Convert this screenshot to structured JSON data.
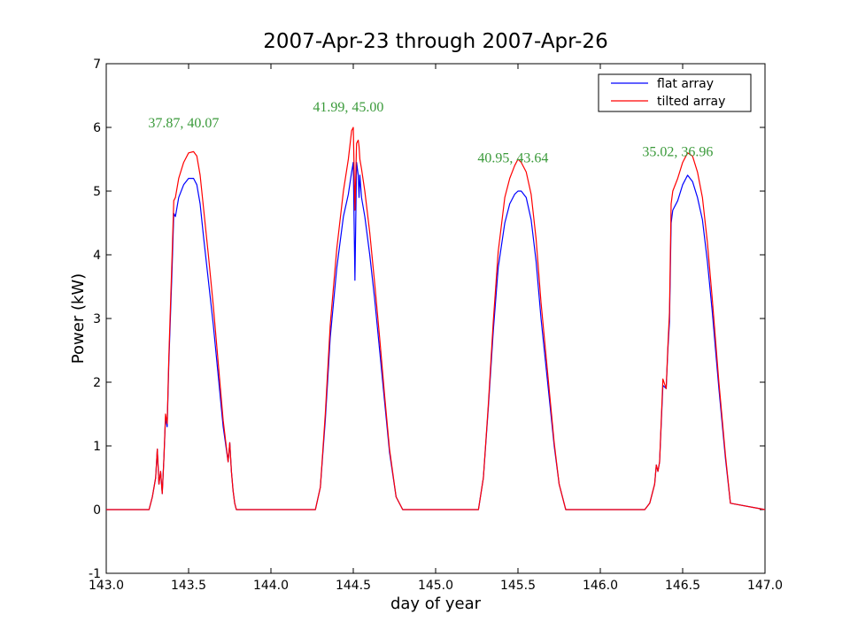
{
  "chart_data": {
    "type": "line",
    "title": "2007-Apr-23 through 2007-Apr-26",
    "xlabel": "day of year",
    "ylabel": "Power (kW)",
    "xlim": [
      143.0,
      147.0
    ],
    "ylim": [
      -1,
      7
    ],
    "xticks": [
      "143.0",
      "143.5",
      "144.0",
      "144.5",
      "145.0",
      "145.5",
      "146.0",
      "146.5",
      "147.0"
    ],
    "yticks": [
      "-1",
      "0",
      "1",
      "2",
      "3",
      "4",
      "5",
      "6",
      "7"
    ],
    "grid": false,
    "legend_position": "top-right",
    "colors": {
      "flat": "#0000ff",
      "tilted": "#ff0000",
      "annotation": "#3a9a3a"
    },
    "series": [
      {
        "name": "flat array",
        "color": "#0000ff",
        "x": [
          143.0,
          143.26,
          143.28,
          143.3,
          143.31,
          143.32,
          143.33,
          143.34,
          143.35,
          143.36,
          143.37,
          143.38,
          143.4,
          143.41,
          143.42,
          143.43,
          143.44,
          143.47,
          143.5,
          143.53,
          143.55,
          143.57,
          143.59,
          143.62,
          143.65,
          143.68,
          143.71,
          143.74,
          143.75,
          143.76,
          143.77,
          143.78,
          143.79,
          144.27,
          144.3,
          144.33,
          144.36,
          144.4,
          144.44,
          144.47,
          144.49,
          144.5,
          144.51,
          144.52,
          144.53,
          144.535,
          144.54,
          144.55,
          144.57,
          144.6,
          144.63,
          144.66,
          144.69,
          144.72,
          144.76,
          144.79,
          144.8,
          145.26,
          145.29,
          145.32,
          145.35,
          145.38,
          145.42,
          145.45,
          145.48,
          145.5,
          145.52,
          145.55,
          145.58,
          145.61,
          145.64,
          145.68,
          145.72,
          145.75,
          145.78,
          145.79,
          146.27,
          146.3,
          146.33,
          146.34,
          146.35,
          146.36,
          146.38,
          146.4,
          146.41,
          146.42,
          146.43,
          146.44,
          146.47,
          146.5,
          146.53,
          146.56,
          146.59,
          146.62,
          146.65,
          146.68,
          146.72,
          146.76,
          146.79,
          147.0
        ],
        "y": [
          0.0,
          0.0,
          0.2,
          0.5,
          0.95,
          0.4,
          0.6,
          0.25,
          0.8,
          1.45,
          1.3,
          2.3,
          3.8,
          4.65,
          4.6,
          4.75,
          4.9,
          5.1,
          5.2,
          5.2,
          5.1,
          4.8,
          4.3,
          3.6,
          2.9,
          2.1,
          1.3,
          0.75,
          1.05,
          0.6,
          0.3,
          0.1,
          0.0,
          0.0,
          0.35,
          1.4,
          2.7,
          3.8,
          4.6,
          4.95,
          5.3,
          5.45,
          3.6,
          5.45,
          5.25,
          4.9,
          5.25,
          4.9,
          4.6,
          4.0,
          3.3,
          2.5,
          1.7,
          0.9,
          0.2,
          0.05,
          0.0,
          0.0,
          0.5,
          1.6,
          2.8,
          3.8,
          4.5,
          4.8,
          4.95,
          5.0,
          5.0,
          4.9,
          4.55,
          3.9,
          3.0,
          2.0,
          1.0,
          0.4,
          0.1,
          0.0,
          0.0,
          0.1,
          0.4,
          0.7,
          0.6,
          0.75,
          1.95,
          1.9,
          2.5,
          2.95,
          4.5,
          4.7,
          4.85,
          5.1,
          5.25,
          5.15,
          4.9,
          4.55,
          3.9,
          3.1,
          1.9,
          0.8,
          0.1,
          0.0
        ]
      },
      {
        "name": "tilted array",
        "color": "#ff0000",
        "x": [
          143.0,
          143.26,
          143.28,
          143.3,
          143.31,
          143.32,
          143.33,
          143.34,
          143.35,
          143.36,
          143.37,
          143.38,
          143.4,
          143.41,
          143.42,
          143.43,
          143.44,
          143.47,
          143.5,
          143.53,
          143.55,
          143.57,
          143.59,
          143.62,
          143.65,
          143.68,
          143.71,
          143.74,
          143.75,
          143.76,
          143.77,
          143.78,
          143.79,
          144.27,
          144.3,
          144.33,
          144.36,
          144.4,
          144.44,
          144.47,
          144.49,
          144.5,
          144.51,
          144.52,
          144.53,
          144.535,
          144.54,
          144.55,
          144.57,
          144.6,
          144.63,
          144.66,
          144.69,
          144.72,
          144.76,
          144.79,
          144.8,
          145.26,
          145.29,
          145.32,
          145.35,
          145.38,
          145.42,
          145.45,
          145.48,
          145.5,
          145.52,
          145.55,
          145.58,
          145.61,
          145.64,
          145.68,
          145.72,
          145.75,
          145.78,
          145.79,
          146.27,
          146.3,
          146.33,
          146.34,
          146.35,
          146.36,
          146.38,
          146.4,
          146.41,
          146.42,
          146.43,
          146.44,
          146.47,
          146.5,
          146.53,
          146.56,
          146.59,
          146.62,
          146.65,
          146.68,
          146.72,
          146.76,
          146.79,
          147.0
        ],
        "y": [
          0.0,
          0.0,
          0.2,
          0.5,
          0.95,
          0.4,
          0.6,
          0.25,
          0.8,
          1.5,
          1.35,
          2.4,
          4.0,
          4.85,
          4.9,
          5.05,
          5.2,
          5.45,
          5.6,
          5.62,
          5.55,
          5.25,
          4.75,
          4.0,
          3.2,
          2.3,
          1.4,
          0.75,
          1.05,
          0.6,
          0.3,
          0.1,
          0.0,
          0.0,
          0.35,
          1.5,
          2.9,
          4.1,
          5.0,
          5.5,
          5.95,
          6.0,
          4.7,
          5.75,
          5.8,
          5.7,
          5.5,
          5.35,
          5.0,
          4.35,
          3.55,
          2.7,
          1.8,
          0.95,
          0.2,
          0.05,
          0.0,
          0.0,
          0.5,
          1.65,
          2.95,
          4.05,
          4.9,
          5.2,
          5.4,
          5.5,
          5.45,
          5.3,
          4.95,
          4.25,
          3.25,
          2.15,
          1.05,
          0.4,
          0.1,
          0.0,
          0.0,
          0.1,
          0.4,
          0.7,
          0.6,
          0.75,
          2.05,
          1.9,
          2.55,
          3.1,
          4.8,
          5.0,
          5.2,
          5.45,
          5.6,
          5.55,
          5.3,
          4.9,
          4.2,
          3.3,
          2.0,
          0.85,
          0.1,
          0.0
        ]
      }
    ],
    "annotations": [
      {
        "text": "37.87, 40.07",
        "x": 143.47,
        "y": 6.0
      },
      {
        "text": "41.99, 45.00",
        "x": 144.47,
        "y": 6.25
      },
      {
        "text": "40.95, 43.64",
        "x": 145.47,
        "y": 5.45
      },
      {
        "text": "35.02, 36.96",
        "x": 146.47,
        "y": 5.55
      }
    ]
  }
}
